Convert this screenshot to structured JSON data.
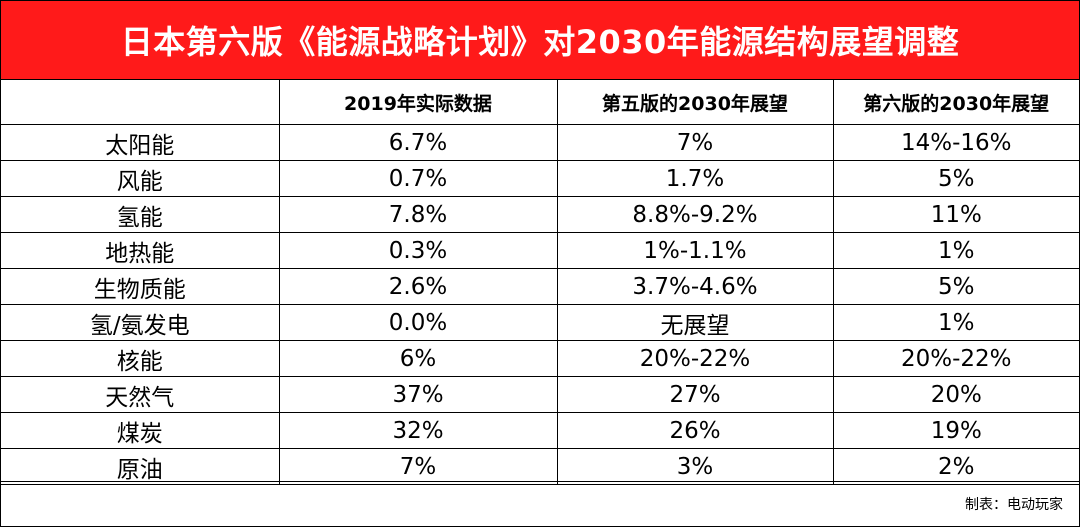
{
  "title": "日本第六版《能源战略计划》对2030年能源结构展望调整",
  "table": {
    "headers": [
      "",
      "2019年实际数据",
      "第五版的2030年展望",
      "第六版的2030年展望"
    ],
    "rows": [
      [
        "太阳能",
        "6.7%",
        "7%",
        "14%-16%"
      ],
      [
        "风能",
        "0.7%",
        "1.7%",
        "5%"
      ],
      [
        "氢能",
        "7.8%",
        "8.8%-9.2%",
        "11%"
      ],
      [
        "地热能",
        "0.3%",
        "1%-1.1%",
        "1%"
      ],
      [
        "生物质能",
        "2.6%",
        "3.7%-4.6%",
        "5%"
      ],
      [
        "氢/氨发电",
        "0.0%",
        "无展望",
        "1%"
      ],
      [
        "核能",
        "6%",
        "20%-22%",
        "20%-22%"
      ],
      [
        "天然气",
        "37%",
        "27%",
        "20%"
      ],
      [
        "煤炭",
        "32%",
        "26%",
        "19%"
      ],
      [
        "原油",
        "7%",
        "3%",
        "2%"
      ]
    ]
  },
  "source": "制表：电动玩家",
  "colors": {
    "title_bg": "#ff1a1a",
    "title_text": "#ffffff",
    "border": "#000000"
  }
}
